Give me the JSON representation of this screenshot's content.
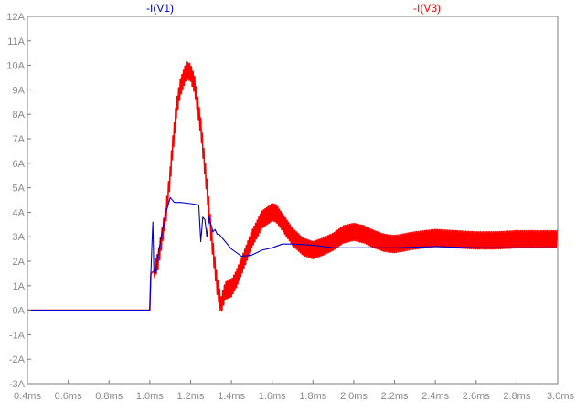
{
  "chart_data": {
    "type": "line",
    "title": "",
    "xlabel": "",
    "ylabel": "",
    "xlim": [
      0.4,
      3.0
    ],
    "ylim": [
      -3,
      12
    ],
    "grid": false,
    "legend": "top",
    "x_ticks": [
      {
        "value": 0.4,
        "label": "0.4ms"
      },
      {
        "value": 0.6,
        "label": "0.6ms"
      },
      {
        "value": 0.8,
        "label": "0.8ms"
      },
      {
        "value": 1.0,
        "label": "1.0ms"
      },
      {
        "value": 1.2,
        "label": "1.2ms"
      },
      {
        "value": 1.4,
        "label": "1.4ms"
      },
      {
        "value": 1.6,
        "label": "1.6ms"
      },
      {
        "value": 1.8,
        "label": "1.8ms"
      },
      {
        "value": 2.0,
        "label": "2.0ms"
      },
      {
        "value": 2.2,
        "label": "2.2ms"
      },
      {
        "value": 2.4,
        "label": "2.4ms"
      },
      {
        "value": 2.6,
        "label": "2.6ms"
      },
      {
        "value": 2.8,
        "label": "2.8ms"
      },
      {
        "value": 3.0,
        "label": "3.0ms"
      }
    ],
    "y_ticks": [
      {
        "value": 12,
        "label": "12A"
      },
      {
        "value": 11,
        "label": "11A"
      },
      {
        "value": 10,
        "label": "10A"
      },
      {
        "value": 9,
        "label": "9A"
      },
      {
        "value": 8,
        "label": "8A"
      },
      {
        "value": 7,
        "label": "7A"
      },
      {
        "value": 6,
        "label": "6A"
      },
      {
        "value": 5,
        "label": "5A"
      },
      {
        "value": 4,
        "label": "4A"
      },
      {
        "value": 3,
        "label": "3A"
      },
      {
        "value": 2,
        "label": "2A"
      },
      {
        "value": 1,
        "label": "1A"
      },
      {
        "value": 0,
        "label": "0A"
      },
      {
        "value": -1,
        "label": "-1A"
      },
      {
        "value": -2,
        "label": "-2A"
      },
      {
        "value": -3,
        "label": "-3A"
      }
    ],
    "series": [
      {
        "name": "-I(V1)",
        "color": "#0000cc",
        "ripple": 0,
        "x": [
          0.4,
          1.0,
          1.005,
          1.01,
          1.015,
          1.02,
          1.025,
          1.03,
          1.04,
          1.06,
          1.08,
          1.1,
          1.12,
          1.15,
          1.2,
          1.24,
          1.25,
          1.26,
          1.27,
          1.28,
          1.29,
          1.3,
          1.31,
          1.32,
          1.33,
          1.34,
          1.36,
          1.4,
          1.45,
          1.5,
          1.55,
          1.6,
          1.65,
          1.7,
          1.8,
          1.9,
          2.0,
          2.2,
          2.4,
          2.6,
          2.8,
          3.0
        ],
        "y": [
          0.0,
          0.0,
          1.5,
          2.6,
          3.6,
          1.6,
          1.5,
          1.6,
          2.2,
          3.2,
          4.0,
          4.6,
          4.4,
          4.4,
          4.35,
          4.3,
          2.8,
          3.8,
          3.7,
          3.0,
          3.8,
          3.5,
          3.2,
          3.3,
          3.1,
          3.1,
          2.9,
          2.5,
          2.2,
          2.25,
          2.45,
          2.55,
          2.7,
          2.7,
          2.65,
          2.55,
          2.55,
          2.55,
          2.6,
          2.55,
          2.55,
          2.55
        ]
      },
      {
        "name": "-I(V3)",
        "color": "#ff0000",
        "ripple": 0.35,
        "x": [
          0.4,
          1.0,
          1.005,
          1.02,
          1.04,
          1.06,
          1.08,
          1.1,
          1.11,
          1.12,
          1.13,
          1.15,
          1.18,
          1.2,
          1.22,
          1.25,
          1.28,
          1.3,
          1.33,
          1.35,
          1.37,
          1.4,
          1.42,
          1.45,
          1.5,
          1.55,
          1.6,
          1.62,
          1.65,
          1.7,
          1.75,
          1.8,
          1.85,
          1.9,
          1.95,
          2.0,
          2.05,
          2.1,
          2.15,
          2.2,
          2.3,
          2.4,
          2.5,
          2.6,
          2.7,
          2.8,
          2.9,
          3.0
        ],
        "y": [
          0.0,
          0.0,
          1.5,
          1.6,
          2.0,
          3.0,
          4.0,
          5.5,
          6.5,
          7.3,
          8.2,
          9.1,
          9.8,
          9.7,
          9.2,
          7.5,
          5.0,
          3.2,
          1.0,
          0.2,
          0.8,
          0.9,
          1.2,
          1.8,
          2.9,
          3.7,
          4.0,
          3.95,
          3.6,
          3.0,
          2.6,
          2.45,
          2.6,
          2.8,
          3.1,
          3.2,
          3.1,
          2.9,
          2.75,
          2.7,
          2.85,
          2.95,
          2.9,
          2.85,
          2.85,
          2.9,
          2.9,
          2.9
        ]
      }
    ]
  }
}
